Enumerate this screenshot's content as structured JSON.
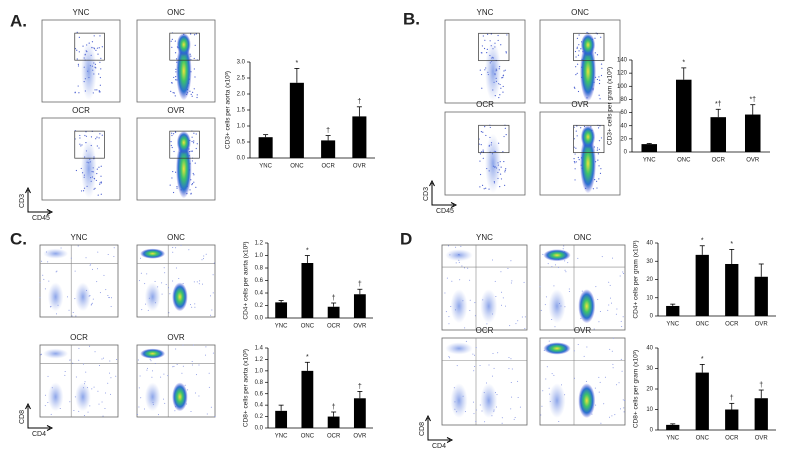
{
  "panels": [
    {
      "label": "A.",
      "plots": [
        "YNC",
        "ONC",
        "OCR",
        "OVR"
      ],
      "y_axis": "CD3",
      "x_axis": "CD45"
    },
    {
      "label": "B.",
      "plots": [
        "YNC",
        "ONC",
        "OCR",
        "OVR"
      ],
      "y_axis": "CD3",
      "x_axis": "CD45"
    },
    {
      "label": "C.",
      "plots": [
        "YNC",
        "ONC",
        "OCR",
        "OVR"
      ],
      "y_axis": "CD8",
      "x_axis": "CD4"
    },
    {
      "label": "D",
      "plots": [
        "YNC",
        "ONC",
        "OCR",
        "OVR"
      ],
      "y_axis": "CD8",
      "x_axis": "CD4"
    }
  ],
  "chart_data": [
    {
      "type": "bar",
      "ylabel": "CD3+ cells per aorta (x10³)",
      "categories": [
        "YNC",
        "ONC",
        "OCR",
        "OVR"
      ],
      "values": [
        0.65,
        2.35,
        0.55,
        1.3
      ],
      "errors": [
        0.08,
        0.45,
        0.15,
        0.3
      ],
      "marks": [
        null,
        "*",
        "†",
        "†"
      ],
      "color": "#000000",
      "ylim": [
        0,
        3
      ],
      "yticks": [
        {
          "value": 0,
          "label": "0.0"
        },
        0.5,
        {
          "value": 1,
          "label": "1.0"
        },
        1.5,
        {
          "value": 2,
          "label": "2.0"
        },
        2.5,
        {
          "value": 3,
          "label": "3.0"
        }
      ]
    },
    {
      "type": "bar",
      "ylabel": "CD3+ cells per gram (x10³)",
      "categories": [
        "YNC",
        "ONC",
        "OCR",
        "OVR"
      ],
      "values": [
        12,
        110,
        53,
        57
      ],
      "errors": [
        1,
        18,
        12,
        15
      ],
      "marks": [
        null,
        "*",
        "*†",
        "*†"
      ],
      "color": "#000000",
      "ylim": [
        0,
        140
      ],
      "yticks": [
        0,
        20,
        40,
        60,
        80,
        100,
        120,
        140
      ]
    },
    {
      "type": "bar",
      "ylabel": "CD4+ cells per aorta (x10³)",
      "categories": [
        "YNC",
        "ONC",
        "OCR",
        "OVR"
      ],
      "values": [
        0.25,
        0.88,
        0.18,
        0.38
      ],
      "errors": [
        0.03,
        0.12,
        0.06,
        0.08
      ],
      "marks": [
        null,
        "*",
        "†",
        "†"
      ],
      "color": "#000000",
      "ylim": [
        0,
        1.2
      ],
      "yticks": [
        {
          "value": 0,
          "label": "0.0"
        },
        0.2,
        0.4,
        0.6,
        0.8,
        {
          "value": 1,
          "label": "1.0"
        },
        1.2
      ]
    },
    {
      "type": "bar",
      "ylabel": "CD8+ cells per aorta (x10³)",
      "categories": [
        "YNC",
        "ONC",
        "OCR",
        "OVR"
      ],
      "values": [
        0.3,
        1.0,
        0.2,
        0.52
      ],
      "errors": [
        0.1,
        0.15,
        0.08,
        0.12
      ],
      "marks": [
        null,
        "*",
        "†",
        "†"
      ],
      "color": "#000000",
      "ylim": [
        0,
        1.4
      ],
      "yticks": [
        {
          "value": 0,
          "label": "0.0"
        },
        0.2,
        0.4,
        0.6,
        0.8,
        {
          "value": 1,
          "label": "1.0"
        },
        1.2,
        1.4
      ]
    },
    {
      "type": "bar",
      "ylabel": "CD4+ cells per gram (x10³)",
      "categories": [
        "YNC",
        "ONC",
        "OCR",
        "OVR"
      ],
      "values": [
        5.5,
        33.5,
        28.5,
        21.5
      ],
      "errors": [
        1,
        5,
        8,
        7
      ],
      "marks": [
        null,
        "*",
        "*",
        null
      ],
      "color": "#000000",
      "ylim": [
        0,
        40
      ],
      "yticks": [
        0,
        10,
        20,
        30,
        40
      ]
    },
    {
      "type": "bar",
      "ylabel": "CD8+ cells per gram (x10³)",
      "categories": [
        "YNC",
        "ONC",
        "OCR",
        "OVR"
      ],
      "values": [
        2.5,
        28,
        10,
        15.5
      ],
      "errors": [
        0.5,
        4,
        3,
        4
      ],
      "marks": [
        null,
        "*",
        "†",
        "†"
      ],
      "color": "#000000",
      "ylim": [
        0,
        40
      ],
      "yticks": [
        0,
        10,
        20,
        30,
        40
      ]
    }
  ]
}
